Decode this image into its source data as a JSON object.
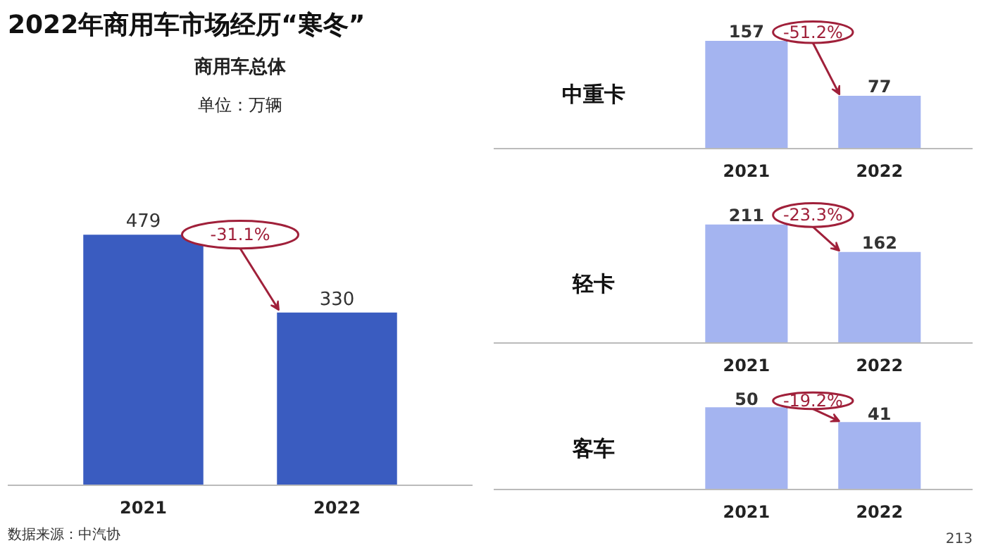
{
  "chart_data": [
    {
      "type": "bar",
      "title": "2022年商用车市场经历“寒冬”",
      "subtitle": "商用车总体",
      "categories": [
        "2021",
        "2022"
      ],
      "values": [
        479,
        330
      ],
      "color": "#3a5cc0",
      "data_labels": true,
      "annotations": [
        "-31.1%",
        "单位：万辆",
        "数据来源：中汽协"
      ]
    },
    {
      "type": "bar",
      "title": "中重卡",
      "categories": [
        "2021",
        "2022"
      ],
      "values": [
        157,
        77
      ],
      "color": "#a4b4f0",
      "data_labels": true,
      "annotations": [
        "-51.2%"
      ]
    },
    {
      "type": "bar",
      "title": "轻卡",
      "categories": [
        "2021",
        "2022"
      ],
      "values": [
        211,
        162
      ],
      "color": "#a4b4f0",
      "data_labels": true,
      "annotations": [
        "-23.3%"
      ]
    },
    {
      "type": "bar",
      "title": "客车",
      "categories": [
        "2021",
        "2022"
      ],
      "values": [
        50,
        41
      ],
      "color": "#a4b4f0",
      "data_labels": true,
      "annotations": [
        "-19.2%",
        "213"
      ]
    }
  ]
}
